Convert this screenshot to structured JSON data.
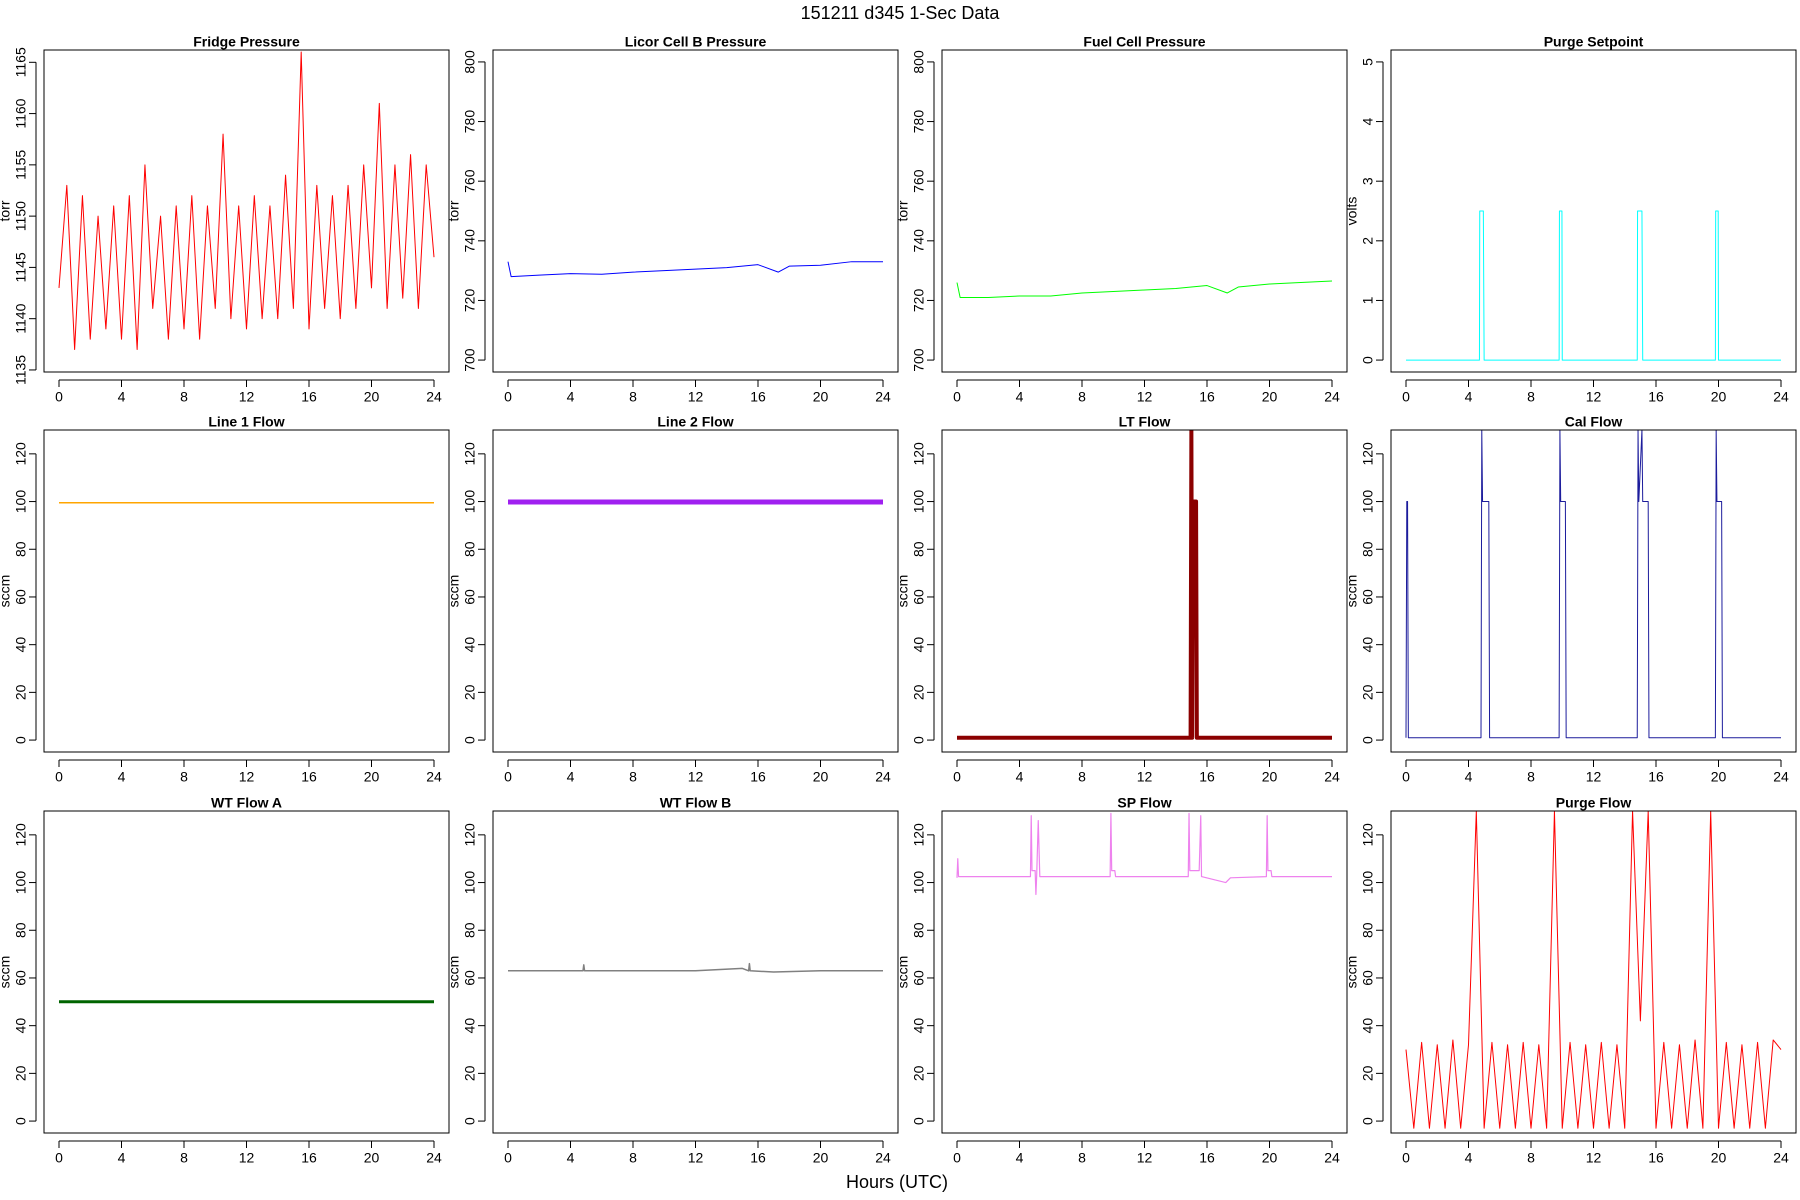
{
  "title": "151211   d345   1-Sec Data",
  "xlabel": "Hours (UTC)",
  "chart_data": [
    {
      "type": "line",
      "title": "Fridge Pressure",
      "ylabel": "torr",
      "color": "#ff0000",
      "line_width": 1,
      "x": [
        0,
        0.5,
        1,
        1.5,
        2,
        2.5,
        3,
        3.5,
        4,
        4.5,
        5,
        5.5,
        6,
        6.5,
        7,
        7.5,
        8,
        8.5,
        9,
        9.5,
        10,
        10.5,
        11,
        11.5,
        12,
        12.5,
        13,
        13.5,
        14,
        14.5,
        15,
        15.5,
        16,
        16.5,
        17,
        17.5,
        18,
        18.5,
        19,
        19.5,
        20,
        20.5,
        21,
        21.5,
        22,
        22.5,
        23,
        23.5,
        24
      ],
      "values": [
        1143,
        1153,
        1137,
        1152,
        1138,
        1150,
        1139,
        1151,
        1138,
        1152,
        1137,
        1155,
        1141,
        1150,
        1138,
        1151,
        1139,
        1152,
        1138,
        1151,
        1141,
        1158,
        1140,
        1151,
        1139,
        1152,
        1140,
        1151,
        1140,
        1154,
        1141,
        1166,
        1139,
        1153,
        1141,
        1152,
        1140,
        1153,
        1141,
        1155,
        1143,
        1161,
        1141,
        1155,
        1142,
        1156,
        1141,
        1155,
        1146
      ],
      "xlim": [
        -0.96,
        24.96
      ],
      "xticks": [
        0,
        4,
        8,
        12,
        16,
        20,
        24
      ],
      "ylim": [
        1134.8,
        1166.2
      ],
      "yticks": [
        1135,
        1140,
        1145,
        1150,
        1155,
        1160,
        1165
      ]
    },
    {
      "type": "line",
      "title": "Licor Cell B Pressure",
      "ylabel": "torr",
      "color": "#0000ff",
      "line_width": 1,
      "x": [
        0,
        0.2,
        2,
        4,
        6,
        8,
        10,
        12,
        14,
        16,
        17.3,
        18,
        20,
        22,
        24
      ],
      "values": [
        733,
        728,
        728.5,
        729,
        728.8,
        729.5,
        730,
        730.5,
        731,
        732,
        729.5,
        731.5,
        731.8,
        733,
        733
      ],
      "xlim": [
        -0.96,
        24.96
      ],
      "xticks": [
        0,
        4,
        8,
        12,
        16,
        20,
        24
      ],
      "ylim": [
        696,
        804
      ],
      "yticks": [
        700,
        720,
        740,
        760,
        780,
        800
      ]
    },
    {
      "type": "line",
      "title": "Fuel Cell Pressure",
      "ylabel": "torr",
      "color": "#00ff00",
      "line_width": 1,
      "x": [
        0,
        0.2,
        2,
        4,
        6,
        8,
        10,
        12,
        14,
        16,
        17.3,
        18,
        20,
        22,
        24
      ],
      "values": [
        726,
        721,
        721,
        721.5,
        721.5,
        722.5,
        723,
        723.5,
        724,
        725,
        722.5,
        724.5,
        725.5,
        726,
        726.5
      ],
      "xlim": [
        -0.96,
        24.96
      ],
      "xticks": [
        0,
        4,
        8,
        12,
        16,
        20,
        24
      ],
      "ylim": [
        696,
        804
      ],
      "yticks": [
        700,
        720,
        740,
        760,
        780,
        800
      ]
    },
    {
      "type": "line",
      "title": "Purge Setpoint",
      "ylabel": "volts",
      "color": "#00ffff",
      "line_width": 1,
      "x": [
        0,
        4.7,
        4.72,
        4.95,
        5.0,
        9.8,
        9.82,
        9.98,
        10.0,
        14.8,
        14.82,
        15.1,
        15.15,
        19.8,
        19.82,
        19.98,
        20.0,
        24
      ],
      "values": [
        0,
        0,
        2.5,
        2.5,
        0,
        0,
        2.5,
        2.5,
        0,
        0,
        2.5,
        2.5,
        0,
        0,
        2.5,
        2.5,
        0,
        0
      ],
      "xlim": [
        -0.96,
        24.96
      ],
      "xticks": [
        0,
        4,
        8,
        12,
        16,
        20,
        24
      ],
      "ylim": [
        -0.2,
        5.2
      ],
      "yticks": [
        0,
        1,
        2,
        3,
        4,
        5
      ]
    },
    {
      "type": "line",
      "title": "Line 1 Flow",
      "ylabel": "sccm",
      "color": "#ffa500",
      "line_width": 1.5,
      "x": [
        0,
        12,
        24
      ],
      "values": [
        99.5,
        99.5,
        99.5
      ],
      "xlim": [
        -0.96,
        24.96
      ],
      "xticks": [
        0,
        4,
        8,
        12,
        16,
        20,
        24
      ],
      "ylim": [
        -5,
        130
      ],
      "yticks": [
        0,
        20,
        40,
        60,
        80,
        100,
        120
      ]
    },
    {
      "type": "line",
      "title": "Line 2 Flow",
      "ylabel": "sccm",
      "color": "#a020f0",
      "line_width": 5,
      "x": [
        0,
        12,
        24
      ],
      "values": [
        99.8,
        99.8,
        99.8
      ],
      "xlim": [
        -0.96,
        24.96
      ],
      "xticks": [
        0,
        4,
        8,
        12,
        16,
        20,
        24
      ],
      "ylim": [
        -5,
        130
      ],
      "yticks": [
        0,
        20,
        40,
        60,
        80,
        100,
        120
      ]
    },
    {
      "type": "line",
      "title": "LT Flow",
      "ylabel": "sccm",
      "color": "#8b0000",
      "line_width": 4,
      "x": [
        0,
        14.95,
        15.0,
        15.05,
        15.1,
        15.3,
        15.35,
        24
      ],
      "values": [
        1,
        1,
        130,
        1,
        100,
        100,
        1,
        1
      ],
      "xlim": [
        -0.96,
        24.96
      ],
      "xticks": [
        0,
        4,
        8,
        12,
        16,
        20,
        24
      ],
      "ylim": [
        -5,
        130
      ],
      "yticks": [
        0,
        20,
        40,
        60,
        80,
        100,
        120
      ]
    },
    {
      "type": "line",
      "title": "Cal Flow",
      "ylabel": "sccm",
      "color": "#1c1c9c",
      "line_width": 1,
      "x": [
        0,
        0.05,
        0.1,
        0.15,
        4.8,
        4.85,
        4.9,
        5.3,
        5.35,
        9.8,
        9.85,
        9.9,
        10.2,
        10.25,
        14.8,
        14.85,
        14.9,
        15.1,
        15.15,
        15.2,
        15.5,
        15.55,
        19.8,
        19.85,
        19.9,
        20.2,
        20.25,
        24
      ],
      "values": [
        1,
        100,
        100,
        1,
        1,
        130,
        100,
        100,
        1,
        1,
        130,
        100,
        100,
        1,
        1,
        130,
        100,
        130,
        100,
        100,
        100,
        1,
        1,
        130,
        100,
        100,
        1,
        1
      ],
      "xlim": [
        -0.96,
        24.96
      ],
      "xticks": [
        0,
        4,
        8,
        12,
        16,
        20,
        24
      ],
      "ylim": [
        -5,
        130
      ],
      "yticks": [
        0,
        20,
        40,
        60,
        80,
        100,
        120
      ]
    },
    {
      "type": "line",
      "title": "WT Flow A",
      "ylabel": "sccm",
      "color": "#006400",
      "line_width": 3,
      "x": [
        0,
        12,
        24
      ],
      "values": [
        50,
        50,
        50
      ],
      "xlim": [
        -0.96,
        24.96
      ],
      "xticks": [
        0,
        4,
        8,
        12,
        16,
        20,
        24
      ],
      "ylim": [
        -5,
        130
      ],
      "yticks": [
        0,
        20,
        40,
        60,
        80,
        100,
        120
      ]
    },
    {
      "type": "line",
      "title": "WT Flow B",
      "ylabel": "sccm",
      "color": "#808080",
      "line_width": 1.5,
      "x": [
        0,
        4,
        4.8,
        4.85,
        4.9,
        8,
        12,
        15,
        15.4,
        15.45,
        15.5,
        17,
        20,
        24
      ],
      "values": [
        63,
        63,
        63,
        65.5,
        63,
        63,
        63,
        64,
        63,
        66,
        63,
        62.5,
        63,
        63
      ],
      "xlim": [
        -0.96,
        24.96
      ],
      "xticks": [
        0,
        4,
        8,
        12,
        16,
        20,
        24
      ],
      "ylim": [
        -5,
        130
      ],
      "yticks": [
        0,
        20,
        40,
        60,
        80,
        100,
        120
      ]
    },
    {
      "type": "line",
      "title": "SP Flow",
      "ylabel": "sccm",
      "color": "#ee82ee",
      "line_width": 1.2,
      "x": [
        0,
        0.05,
        0.1,
        4.7,
        4.75,
        4.8,
        5.0,
        5.05,
        5.1,
        5.2,
        5.3,
        9.8,
        9.85,
        9.9,
        10.1,
        10.15,
        14.8,
        14.85,
        14.9,
        15.5,
        15.6,
        15.65,
        17.2,
        17.5,
        19.8,
        19.85,
        19.9,
        20.1,
        20.15,
        24
      ],
      "values": [
        102,
        110,
        102.5,
        102.5,
        128,
        105,
        105,
        95,
        103,
        126,
        102.5,
        102.5,
        129,
        105,
        105,
        102.5,
        102.5,
        129,
        105,
        105,
        128,
        102.5,
        100,
        102,
        102.5,
        128,
        105,
        105,
        102.5,
        102.5
      ],
      "xlim": [
        -0.96,
        24.96
      ],
      "xticks": [
        0,
        4,
        8,
        12,
        16,
        20,
        24
      ],
      "ylim": [
        -5,
        130
      ],
      "yticks": [
        0,
        20,
        40,
        60,
        80,
        100,
        120
      ]
    },
    {
      "type": "line",
      "title": "Purge Flow",
      "ylabel": "sccm",
      "color": "#ff0000",
      "line_width": 1,
      "x": [
        0,
        0.5,
        1,
        1.5,
        2,
        2.5,
        3,
        3.5,
        4,
        4.5,
        5,
        5.5,
        6,
        6.5,
        7,
        7.5,
        8,
        8.5,
        9,
        9.5,
        10,
        10.5,
        11,
        11.5,
        12,
        12.5,
        13,
        13.5,
        14,
        14.5,
        15,
        15.5,
        16,
        16.5,
        17,
        17.5,
        18,
        18.5,
        19,
        19.5,
        20,
        20.5,
        21,
        21.5,
        22,
        22.5,
        23,
        23.5,
        24
      ],
      "values": [
        30,
        -3,
        33,
        -3,
        32,
        -3,
        34,
        -3,
        32,
        130,
        -3,
        33,
        -3,
        32,
        -3,
        33,
        -3,
        32,
        -3,
        130,
        -3,
        33,
        -3,
        32,
        -3,
        33,
        -3,
        32,
        -3,
        130,
        42,
        130,
        -3,
        33,
        -3,
        32,
        -3,
        34,
        -3,
        130,
        -3,
        33,
        -3,
        32,
        -3,
        33,
        -3,
        34,
        30
      ],
      "xlim": [
        -0.96,
        24.96
      ],
      "xticks": [
        0,
        4,
        8,
        12,
        16,
        20,
        24
      ],
      "ylim": [
        -5,
        130
      ],
      "yticks": [
        0,
        20,
        40,
        60,
        80,
        100,
        120
      ]
    }
  ]
}
